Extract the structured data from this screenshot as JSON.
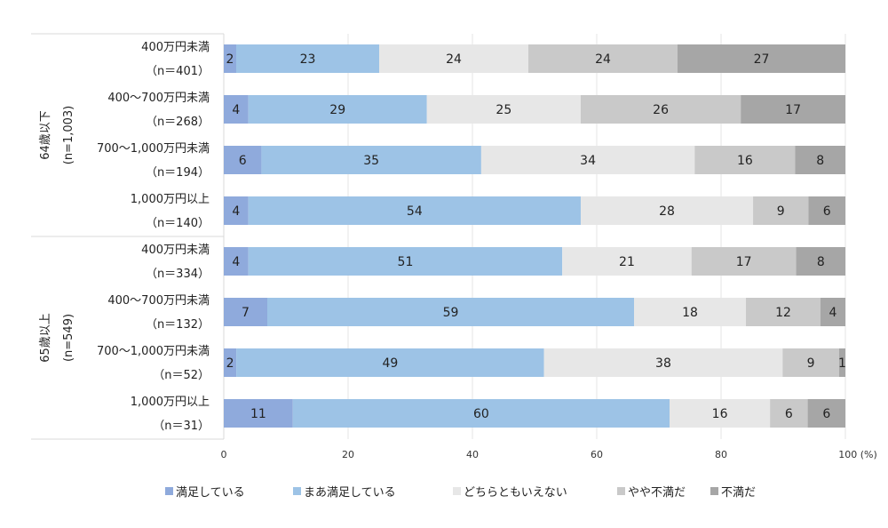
{
  "chart_data": {
    "type": "bar",
    "orientation": "horizontal",
    "stacked": true,
    "xlim": [
      0,
      100
    ],
    "xticks": [
      0,
      20,
      40,
      60,
      80,
      100
    ],
    "xtick_labels": [
      "0",
      "20",
      "40",
      "60",
      "80",
      "100 (%)"
    ],
    "grid": true,
    "legend_position": "bottom",
    "groups": [
      {
        "label": "64歳以下",
        "n_label": "(n=1,003)",
        "rows": [
          0,
          1,
          2,
          3
        ]
      },
      {
        "label": "65歳以上",
        "n_label": "(n=549)",
        "rows": [
          4,
          5,
          6,
          7
        ]
      }
    ],
    "categories": [
      {
        "label": "400万円未満",
        "n": "（n＝401）"
      },
      {
        "label": "400～700万円未満",
        "n": "（n＝268）"
      },
      {
        "label": "700～1,000万円未満",
        "n": "（n＝194）"
      },
      {
        "label": "1,000万円以上",
        "n": "（n＝140）"
      },
      {
        "label": "400万円未満",
        "n": "（n＝334）"
      },
      {
        "label": "400～700万円未満",
        "n": "（n＝132）"
      },
      {
        "label": "700～1,000万円未満",
        "n": "（n＝52）"
      },
      {
        "label": "1,000万円以上",
        "n": "（n＝31）"
      }
    ],
    "series": [
      {
        "name": "満足している",
        "color": "#8faadc",
        "values": [
          2,
          4,
          6,
          4,
          4,
          7,
          2,
          11
        ]
      },
      {
        "name": "まあ満足している",
        "color": "#9dc3e6",
        "values": [
          23,
          29,
          35,
          54,
          51,
          59,
          49,
          60
        ]
      },
      {
        "name": "どちらともいえない",
        "color": "#e7e7e7",
        "values": [
          24,
          25,
          34,
          28,
          21,
          18,
          38,
          16
        ]
      },
      {
        "name": "やや不満だ",
        "color": "#c9c9c9",
        "values": [
          24,
          26,
          16,
          9,
          17,
          12,
          9,
          6
        ]
      },
      {
        "name": "不満だ",
        "color": "#a6a6a6",
        "values": [
          27,
          17,
          8,
          6,
          8,
          4,
          1,
          6
        ]
      }
    ]
  }
}
